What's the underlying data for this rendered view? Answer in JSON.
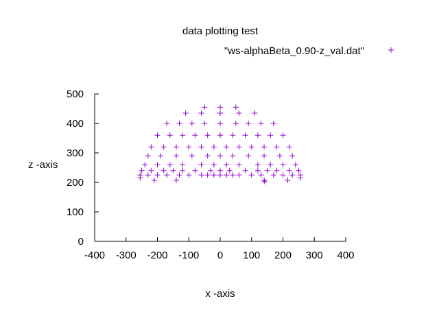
{
  "chart_data": {
    "type": "scatter",
    "title": "data plotting test",
    "xlabel": "x -axis",
    "ylabel": "z -axis",
    "xlim": [
      -400,
      400
    ],
    "ylim": [
      0,
      500
    ],
    "x_ticks": [
      "-400",
      "-300",
      "-200",
      "-100",
      "0",
      "100",
      "200",
      "300",
      "400"
    ],
    "y_ticks": [
      "0",
      "100",
      "200",
      "300",
      "400",
      "500"
    ],
    "grid": false,
    "legend_position": "top-right",
    "marker": "+",
    "series": [
      {
        "name": "\"ws-alphaBeta_0.90-z_val.dat\"",
        "color": "#9400d3",
        "shape": "upper half-disc centered at x=0 spanning x from about -260 to 260 and z from about 210 to 455, densely filled near the top with sparser points toward the base",
        "points": [
          [
            -255,
            215
          ],
          [
            -210,
            207
          ],
          [
            -140,
            207
          ],
          [
            140,
            207
          ],
          [
            142,
            203
          ],
          [
            215,
            207
          ],
          [
            255,
            215
          ],
          [
            -255,
            225
          ],
          [
            -230,
            225
          ],
          [
            -200,
            225
          ],
          [
            -170,
            225
          ],
          [
            -130,
            225
          ],
          [
            -100,
            225
          ],
          [
            -60,
            225
          ],
          [
            -40,
            225
          ],
          [
            -20,
            225
          ],
          [
            0,
            225
          ],
          [
            20,
            225
          ],
          [
            40,
            225
          ],
          [
            60,
            225
          ],
          [
            100,
            225
          ],
          [
            130,
            225
          ],
          [
            170,
            225
          ],
          [
            200,
            225
          ],
          [
            230,
            225
          ],
          [
            255,
            225
          ],
          [
            -250,
            240
          ],
          [
            -220,
            240
          ],
          [
            -180,
            240
          ],
          [
            -150,
            240
          ],
          [
            -120,
            240
          ],
          [
            -80,
            240
          ],
          [
            -30,
            240
          ],
          [
            0,
            240
          ],
          [
            30,
            240
          ],
          [
            80,
            240
          ],
          [
            120,
            240
          ],
          [
            150,
            240
          ],
          [
            180,
            240
          ],
          [
            220,
            240
          ],
          [
            250,
            240
          ],
          [
            -240,
            260
          ],
          [
            -200,
            260
          ],
          [
            -160,
            260
          ],
          [
            -120,
            260
          ],
          [
            -60,
            260
          ],
          [
            -20,
            260
          ],
          [
            20,
            260
          ],
          [
            60,
            260
          ],
          [
            120,
            260
          ],
          [
            160,
            260
          ],
          [
            200,
            260
          ],
          [
            240,
            260
          ],
          [
            -230,
            290
          ],
          [
            -190,
            290
          ],
          [
            -140,
            290
          ],
          [
            -90,
            290
          ],
          [
            -40,
            290
          ],
          [
            0,
            290
          ],
          [
            40,
            290
          ],
          [
            90,
            290
          ],
          [
            140,
            290
          ],
          [
            190,
            290
          ],
          [
            230,
            290
          ],
          [
            -220,
            320
          ],
          [
            -180,
            320
          ],
          [
            -140,
            320
          ],
          [
            -100,
            320
          ],
          [
            -60,
            320
          ],
          [
            -20,
            320
          ],
          [
            20,
            320
          ],
          [
            60,
            320
          ],
          [
            100,
            320
          ],
          [
            140,
            320
          ],
          [
            180,
            320
          ],
          [
            220,
            320
          ],
          [
            -200,
            360
          ],
          [
            -160,
            360
          ],
          [
            -120,
            360
          ],
          [
            -80,
            360
          ],
          [
            -40,
            360
          ],
          [
            0,
            360
          ],
          [
            40,
            360
          ],
          [
            80,
            360
          ],
          [
            120,
            360
          ],
          [
            160,
            360
          ],
          [
            200,
            360
          ],
          [
            -170,
            400
          ],
          [
            -130,
            400
          ],
          [
            -90,
            400
          ],
          [
            -50,
            400
          ],
          [
            0,
            400
          ],
          [
            50,
            400
          ],
          [
            90,
            400
          ],
          [
            130,
            400
          ],
          [
            170,
            400
          ],
          [
            -110,
            435
          ],
          [
            -60,
            435
          ],
          [
            0,
            435
          ],
          [
            60,
            435
          ],
          [
            110,
            435
          ],
          [
            -50,
            455
          ],
          [
            0,
            455
          ],
          [
            50,
            455
          ]
        ]
      }
    ]
  }
}
